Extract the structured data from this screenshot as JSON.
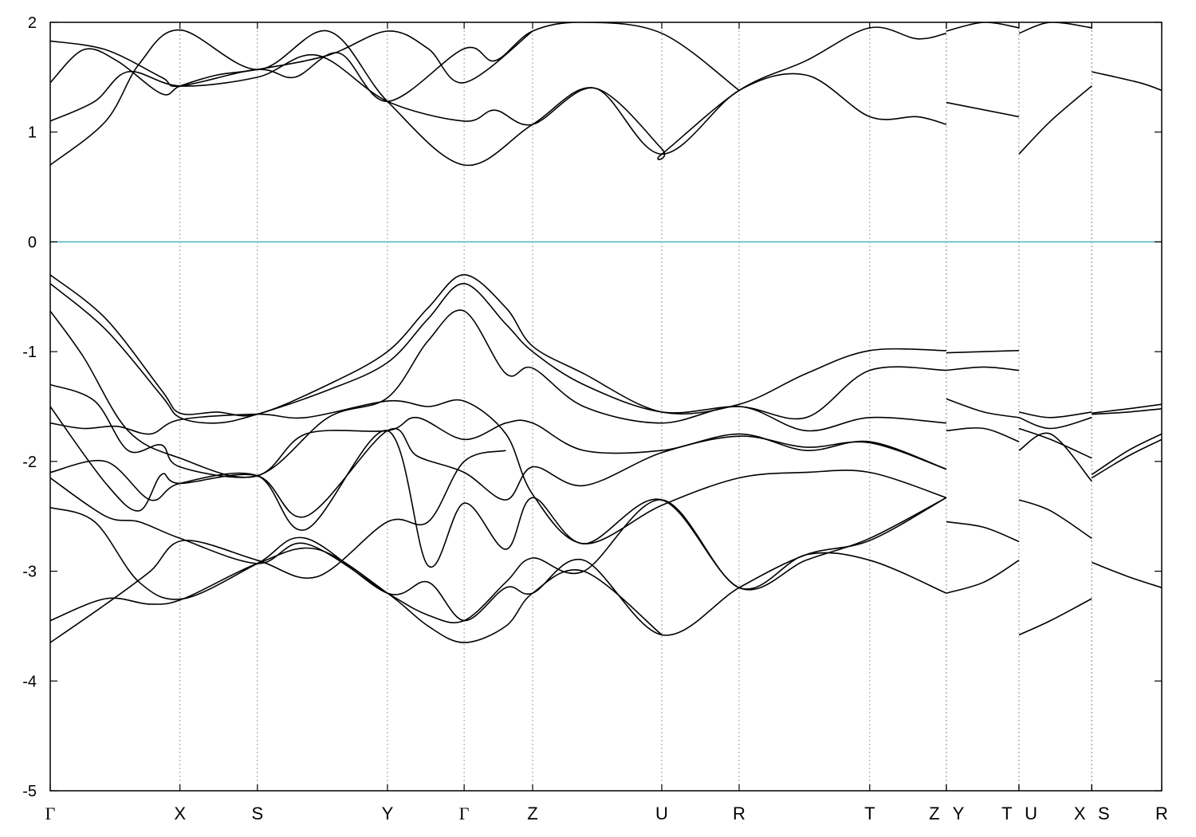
{
  "chart_data": {
    "type": "line",
    "title": "",
    "xlabel": "",
    "ylabel": "",
    "ylim": [
      -5,
      2
    ],
    "yticks": [
      2,
      1,
      0,
      -1,
      -2,
      -3,
      -4,
      -5
    ],
    "fermi_level": 0,
    "fermi_color": "#5ab4c8",
    "band_color": "#000000",
    "grid": "vertical dotted at k-points",
    "kpoints": [
      {
        "label": "Γ",
        "x": 0.0
      },
      {
        "label": "X",
        "x": 0.1167
      },
      {
        "label": "S",
        "x": 0.1864
      },
      {
        "label": "Y",
        "x": 0.3034
      },
      {
        "label": "Γ",
        "x": 0.3724
      },
      {
        "label": "Z",
        "x": 0.434
      },
      {
        "label": "U",
        "x": 0.5502
      },
      {
        "label": "R",
        "x": 0.6198
      },
      {
        "label": "T",
        "x": 0.7373
      },
      {
        "label": "Z",
        "x": 0.8062
      },
      {
        "label": "Y",
        "x": 0.8063
      },
      {
        "label": "T",
        "x": 0.8715
      },
      {
        "label": "U",
        "x": 0.8716
      },
      {
        "label": "X",
        "x": 0.937
      },
      {
        "label": "S",
        "x": 0.9371
      },
      {
        "label": "R",
        "x": 1.0
      }
    ],
    "series": [
      {
        "x": [
          0.0,
          0.05,
          0.08,
          0.1167,
          0.1864,
          0.25,
          0.3034,
          0.3724,
          0.434,
          0.49,
          0.5502,
          0.6198,
          0.68,
          0.7373,
          0.78,
          0.8062
        ],
        "y": [
          0.7,
          1.1,
          1.62,
          1.93,
          1.57,
          1.92,
          1.28,
          0.7,
          1.07,
          1.4,
          0.8,
          1.38,
          1.52,
          1.14,
          1.14,
          1.07
        ]
      },
      {
        "x": [
          0.8063,
          0.8715
        ],
        "y": [
          1.27,
          1.14
        ]
      },
      {
        "x": [
          0.8716,
          0.9,
          0.937
        ],
        "y": [
          0.8,
          1.1,
          1.42
        ]
      },
      {
        "x": [
          0.9371,
          0.98,
          1.0
        ],
        "y": [
          1.55,
          1.45,
          1.38
        ]
      },
      {
        "x": [
          0.0,
          0.04,
          0.07,
          0.1167,
          0.1864,
          0.24,
          0.3034,
          0.3724,
          0.4,
          0.434,
          0.49,
          0.55,
          0.5502,
          0.6198,
          0.68,
          0.7373,
          0.78,
          0.8062
        ],
        "y": [
          1.1,
          1.28,
          1.55,
          1.42,
          1.5,
          1.7,
          1.28,
          1.1,
          1.2,
          1.07,
          1.4,
          0.85,
          0.8,
          1.38,
          1.65,
          1.95,
          1.85,
          1.9
        ]
      },
      {
        "x": [
          0.0,
          0.03,
          0.06,
          0.1,
          0.1167,
          0.15,
          0.1864,
          0.25,
          0.3034,
          0.34,
          0.3724,
          0.434
        ],
        "y": [
          1.45,
          1.75,
          1.65,
          1.35,
          1.42,
          1.52,
          1.57,
          1.7,
          1.92,
          1.76,
          1.45,
          1.92
        ]
      },
      {
        "x": [
          0.0,
          0.05,
          0.1,
          0.1167,
          0.1864,
          0.22,
          0.26,
          0.3034,
          0.3724,
          0.4,
          0.434,
          0.48,
          0.5502,
          0.6198
        ],
        "y": [
          1.83,
          1.75,
          1.5,
          1.42,
          1.57,
          1.5,
          1.72,
          1.28,
          1.76,
          1.65,
          1.92,
          2.0,
          1.9,
          1.38
        ]
      },
      {
        "x": [
          0.8063,
          0.84,
          0.8715
        ],
        "y": [
          1.92,
          2.0,
          1.95
        ]
      },
      {
        "x": [
          0.8716,
          0.9,
          0.937
        ],
        "y": [
          1.9,
          2.0,
          1.95
        ]
      },
      {
        "x": [
          0.0,
          0.05,
          0.1,
          0.1167,
          0.15,
          0.1864,
          0.25,
          0.3034,
          0.34,
          0.3724,
          0.41,
          0.434,
          0.48,
          0.5502,
          0.6198,
          0.68,
          0.7373,
          0.8062
        ],
        "y": [
          -0.3,
          -0.7,
          -1.35,
          -1.56,
          -1.55,
          -1.57,
          -1.3,
          -1.0,
          -0.6,
          -0.3,
          -0.6,
          -0.95,
          -1.2,
          -1.55,
          -1.48,
          -1.2,
          -0.99,
          -0.99
        ]
      },
      {
        "x": [
          0.8063,
          0.8715
        ],
        "y": [
          -1.01,
          -0.99
        ]
      },
      {
        "x": [
          0.8716,
          0.9,
          0.937
        ],
        "y": [
          -1.55,
          -1.6,
          -1.55
        ]
      },
      {
        "x": [
          0.9371,
          0.97,
          1.0
        ],
        "y": [
          -1.56,
          -1.52,
          -1.48
        ]
      },
      {
        "x": [
          0.0,
          0.05,
          0.1,
          0.1167,
          0.15,
          0.1864,
          0.25,
          0.3034,
          0.34,
          0.3724,
          0.41,
          0.434,
          0.48,
          0.5502,
          0.6198,
          0.68,
          0.7373,
          0.8062
        ],
        "y": [
          -0.38,
          -0.8,
          -1.4,
          -1.6,
          -1.65,
          -1.57,
          -1.35,
          -1.1,
          -0.7,
          -0.38,
          -0.75,
          -1.0,
          -1.3,
          -1.55,
          -1.5,
          -1.6,
          -1.17,
          -1.17
        ]
      },
      {
        "x": [
          0.8063,
          0.84,
          0.8715
        ],
        "y": [
          -1.17,
          -1.14,
          -1.17
        ]
      },
      {
        "x": [
          0.8716,
          0.9,
          0.937
        ],
        "y": [
          -1.6,
          -1.7,
          -1.6
        ]
      },
      {
        "x": [
          0.9371,
          0.97,
          1.0
        ],
        "y": [
          -1.57,
          -1.55,
          -1.52
        ]
      },
      {
        "x": [
          0.0,
          0.03,
          0.07,
          0.1167,
          0.1864,
          0.25,
          0.3034,
          0.34,
          0.3724,
          0.41,
          0.434,
          0.48,
          0.5502,
          0.6198,
          0.68,
          0.7373,
          0.8062
        ],
        "y": [
          -0.63,
          -1.05,
          -1.72,
          -1.97,
          -2.13,
          -1.6,
          -1.42,
          -0.9,
          -0.63,
          -1.2,
          -1.15,
          -1.5,
          -1.65,
          -1.5,
          -1.72,
          -1.6,
          -1.65
        ]
      },
      {
        "x": [
          0.8063,
          0.84,
          0.8715
        ],
        "y": [
          -1.43,
          -1.55,
          -1.6
        ]
      },
      {
        "x": [
          0.8716,
          0.9,
          0.937
        ],
        "y": [
          -1.7,
          -1.8,
          -1.97
        ]
      },
      {
        "x": [
          0.9371,
          0.97,
          1.0
        ],
        "y": [
          -2.12,
          -1.9,
          -1.75
        ]
      },
      {
        "x": [
          0.0,
          0.04,
          0.07,
          0.1,
          0.1167,
          0.1864,
          0.23,
          0.3034,
          0.33,
          0.3724,
          0.41,
          0.434,
          0.48,
          0.5502,
          0.6198,
          0.68,
          0.7373,
          0.8062
        ],
        "y": [
          -1.3,
          -1.45,
          -1.9,
          -1.85,
          -2.05,
          -2.13,
          -1.75,
          -1.72,
          -1.6,
          -1.8,
          -1.65,
          -1.65,
          -1.9,
          -1.9,
          -1.75,
          -1.9,
          -1.82,
          -2.07
        ]
      },
      {
        "x": [
          0.8063,
          0.84,
          0.8715
        ],
        "y": [
          -1.72,
          -1.7,
          -1.82
        ]
      },
      {
        "x": [
          0.8716,
          0.9,
          0.937
        ],
        "y": [
          -1.9,
          -1.75,
          -2.18
        ]
      },
      {
        "x": [
          0.9371,
          0.97,
          1.0
        ],
        "y": [
          -2.15,
          -1.95,
          -1.8
        ]
      },
      {
        "x": [
          0.0,
          0.05,
          0.08,
          0.1,
          0.1167,
          0.1864,
          0.23,
          0.3034,
          0.33,
          0.3724,
          0.41,
          0.434,
          0.48,
          0.5502,
          0.6198,
          0.68,
          0.7373,
          0.8062
        ],
        "y": [
          -1.5,
          -2.2,
          -2.45,
          -2.12,
          -2.2,
          -2.13,
          -2.5,
          -1.72,
          -1.95,
          -2.1,
          -2.35,
          -2.05,
          -2.22,
          -1.92,
          -1.77,
          -1.87,
          -1.83,
          -2.07
        ]
      },
      {
        "x": [
          0.0,
          0.03,
          0.06,
          0.09,
          0.1167,
          0.1864,
          0.23,
          0.3034,
          0.34,
          0.3724,
          0.41,
          0.434,
          0.48,
          0.5502,
          0.6198,
          0.68,
          0.7373,
          0.8062
        ],
        "y": [
          -1.65,
          -1.7,
          -1.68,
          -1.75,
          -1.62,
          -1.57,
          -1.6,
          -1.45,
          -1.5,
          -1.45,
          -1.75,
          -2.3,
          -2.75,
          -2.4,
          -2.15,
          -2.1,
          -2.1,
          -2.33
        ]
      },
      {
        "x": [
          0.0,
          0.05,
          0.09,
          0.1167,
          0.1864,
          0.23,
          0.3034,
          0.34,
          0.3724,
          0.41,
          0.434,
          0.48,
          0.5502,
          0.6198,
          0.68,
          0.7373,
          0.8062
        ],
        "y": [
          -2.1,
          -2.0,
          -2.35,
          -2.2,
          -2.13,
          -2.62,
          -1.72,
          -2.95,
          -2.38,
          -2.8,
          -2.33,
          -2.75,
          -2.35,
          -3.15,
          -2.9,
          -2.7,
          -2.33
        ]
      },
      {
        "x": [
          0.8063,
          0.84,
          0.8715
        ],
        "y": [
          -2.55,
          -2.6,
          -2.73
        ]
      },
      {
        "x": [
          0.8716,
          0.9,
          0.937
        ],
        "y": [
          -2.35,
          -2.45,
          -2.7
        ]
      },
      {
        "x": [
          0.9371,
          0.97,
          1.0
        ],
        "y": [
          -2.92,
          -3.05,
          -3.15
        ]
      },
      {
        "x": [
          0.0,
          0.05,
          0.08,
          0.1167,
          0.1864,
          0.23,
          0.3034,
          0.34,
          0.3724,
          0.41,
          0.434,
          0.48,
          0.5502,
          0.6198,
          0.68,
          0.7373,
          0.8062
        ],
        "y": [
          -2.15,
          -2.5,
          -2.55,
          -2.7,
          -2.93,
          -2.75,
          -3.2,
          -3.4,
          -3.45,
          -3.1,
          -2.88,
          -3.0,
          -2.35,
          -3.15,
          -2.85,
          -2.9,
          -3.2
        ]
      },
      {
        "x": [
          0.8063,
          0.84,
          0.8715
        ],
        "y": [
          -3.2,
          -3.1,
          -2.9
        ]
      },
      {
        "x": [
          0.0,
          0.04,
          0.08,
          0.12,
          0.1864,
          0.23,
          0.3034,
          0.34,
          0.3724,
          0.41,
          0.434,
          0.48,
          0.5502,
          0.6198,
          0.68,
          0.7373,
          0.8062
        ],
        "y": [
          -2.42,
          -2.55,
          -3.1,
          -3.25,
          -2.93,
          -2.7,
          -3.2,
          -3.1,
          -3.45,
          -3.15,
          -3.2,
          -2.9,
          -3.58,
          -3.15,
          -2.85,
          -2.72,
          -2.33
        ]
      },
      {
        "x": [
          0.8716,
          0.9,
          0.937
        ],
        "y": [
          -3.58,
          -3.45,
          -3.25
        ]
      },
      {
        "x": [
          0.0,
          0.05,
          0.09,
          0.12,
          0.1864,
          0.24,
          0.3034,
          0.34,
          0.3724,
          0.41,
          0.434,
          0.48,
          0.5502
        ],
        "y": [
          -3.45,
          -3.25,
          -3.3,
          -3.25,
          -2.93,
          -2.8,
          -3.2,
          -3.5,
          -3.65,
          -3.5,
          -3.2,
          -3.0,
          -3.58
        ]
      },
      {
        "x": [
          0.0,
          0.05,
          0.09,
          0.12,
          0.1864,
          0.24,
          0.3034,
          0.34,
          0.3724,
          0.41
        ],
        "y": [
          -3.65,
          -3.3,
          -3.0,
          -2.72,
          -2.9,
          -3.05,
          -2.55,
          -2.55,
          -2.0,
          -1.9
        ]
      }
    ]
  }
}
